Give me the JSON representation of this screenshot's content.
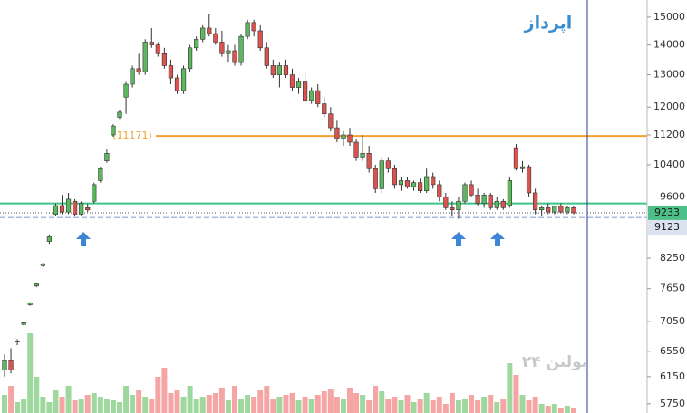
{
  "chart_data": {
    "type": "candlestick",
    "title": "اپرداز",
    "watermark": "بولتن ۲۴",
    "log_scale": true,
    "ylim": [
      5620,
      15650
    ],
    "yticks": [
      15000,
      14000,
      13000,
      12000,
      11200,
      10400,
      9600,
      8250,
      7650,
      7050,
      6550,
      6150,
      5750
    ],
    "up_color": "#5cb85c",
    "down_color": "#d9534f",
    "up_volume_color": "#9fd89f",
    "down_volume_color": "#f6a5a5",
    "open": [
      6250,
      6400,
      6700,
      7000,
      7350,
      7700,
      8100,
      8600,
      9200,
      9400,
      9250,
      9500,
      9200,
      9350,
      9500,
      10000,
      10500,
      11200,
      11700,
      12300,
      12700,
      13200,
      13100,
      14100,
      14000,
      13700,
      13300,
      12900,
      12500,
      13200,
      13900,
      14200,
      14600,
      14400,
      14100,
      13700,
      13800,
      13400,
      14300,
      14800,
      14500,
      13900,
      13300,
      13000,
      13300,
      13000,
      12600,
      12800,
      12200,
      12500,
      12100,
      11800,
      11400,
      11100,
      11200,
      11000,
      10600,
      10700,
      10300,
      9800,
      10500,
      10300,
      9900,
      10000,
      9850,
      9950,
      9750,
      10100,
      9900,
      9600,
      9350,
      9300,
      9500,
      9900,
      9650,
      9450,
      9650,
      9350,
      9500,
      9400,
      10850,
      10300,
      10350,
      9700,
      9300,
      9350,
      9250,
      9380,
      9250,
      9350
    ],
    "high": [
      6500,
      6600,
      6750,
      7050,
      7400,
      7750,
      8150,
      8750,
      9450,
      9650,
      9700,
      9550,
      9500,
      9450,
      9950,
      10350,
      10800,
      11500,
      11900,
      12800,
      13300,
      13700,
      14200,
      14600,
      14100,
      13900,
      13500,
      13000,
      13300,
      14000,
      14300,
      14700,
      15100,
      14600,
      14500,
      14000,
      14000,
      14400,
      14900,
      14900,
      14700,
      14100,
      13500,
      13400,
      13500,
      13200,
      12900,
      13100,
      12600,
      12700,
      12300,
      12000,
      11600,
      11300,
      11400,
      11100,
      11200,
      10900,
      10400,
      10600,
      10600,
      10400,
      10100,
      10100,
      10000,
      10050,
      10300,
      10200,
      10000,
      9700,
      9500,
      9600,
      9950,
      10000,
      9800,
      9700,
      9700,
      9600,
      9550,
      10100,
      10950,
      10500,
      10400,
      9800,
      9400,
      9450,
      9400,
      9450,
      9400,
      9380
    ],
    "low": [
      6150,
      6200,
      6650,
      6980,
      7330,
      7680,
      8080,
      8550,
      9150,
      9200,
      9200,
      9150,
      9150,
      9250,
      9450,
      9950,
      10450,
      11150,
      11650,
      11800,
      12600,
      13000,
      13000,
      13900,
      13600,
      13200,
      12700,
      12400,
      12400,
      13100,
      13800,
      14100,
      14300,
      14000,
      13600,
      13400,
      13300,
      13300,
      14200,
      14300,
      13800,
      13200,
      12900,
      12600,
      12900,
      12500,
      12400,
      12100,
      12100,
      12000,
      11700,
      11300,
      11000,
      10900,
      10900,
      10500,
      10500,
      10200,
      9700,
      9700,
      10200,
      9800,
      9750,
      9800,
      9750,
      9700,
      9700,
      9800,
      9500,
      9300,
      9150,
      9100,
      9450,
      9600,
      9400,
      9350,
      9300,
      9300,
      9300,
      9350,
      10250,
      10200,
      9600,
      9200,
      9150,
      9200,
      9200,
      9220,
      9200,
      9200
    ],
    "close": [
      6400,
      6250,
      6720,
      7030,
      7380,
      7740,
      8130,
      8700,
      9400,
      9250,
      9550,
      9200,
      9450,
      9300,
      9900,
      10300,
      10700,
      11450,
      11850,
      12700,
      13200,
      13100,
      14100,
      14000,
      13700,
      13300,
      12900,
      12500,
      13200,
      13900,
      14200,
      14600,
      14400,
      14100,
      13700,
      13800,
      13400,
      14300,
      14800,
      14500,
      13900,
      13300,
      13000,
      13300,
      13000,
      12600,
      12800,
      12200,
      12500,
      12100,
      11800,
      11400,
      11100,
      11200,
      11000,
      10600,
      10700,
      10300,
      9800,
      10500,
      10300,
      9900,
      10000,
      9850,
      9950,
      9750,
      10100,
      9900,
      9600,
      9350,
      9300,
      9500,
      9900,
      9650,
      9450,
      9650,
      9350,
      9500,
      9350,
      10000,
      10300,
      10350,
      9700,
      9300,
      9350,
      9250,
      9380,
      9250,
      9350,
      9233
    ],
    "volume": [
      20,
      30,
      12,
      15,
      88,
      40,
      18,
      12,
      25,
      18,
      30,
      14,
      16,
      20,
      22,
      18,
      15,
      14,
      12,
      30,
      20,
      25,
      18,
      16,
      40,
      50,
      22,
      25,
      18,
      30,
      16,
      18,
      20,
      22,
      28,
      14,
      30,
      16,
      20,
      18,
      25,
      30,
      16,
      18,
      20,
      22,
      14,
      18,
      16,
      20,
      24,
      26,
      18,
      16,
      28,
      22,
      20,
      14,
      30,
      24,
      16,
      18,
      14,
      20,
      12,
      16,
      22,
      14,
      18,
      10,
      22,
      14,
      16,
      20,
      14,
      18,
      20,
      12,
      16,
      55,
      42,
      20,
      14,
      18,
      10,
      8,
      10,
      6,
      8,
      6
    ],
    "volume_lim": [
      0,
      100
    ],
    "hlines": [
      {
        "value": 11171,
        "label": "(11171)",
        "color": "#f5a030"
      },
      {
        "value": 9450,
        "color": "#3cc48a"
      }
    ],
    "price_tags": [
      {
        "value": 9233,
        "color": "#4cbf87"
      },
      {
        "value": 9123,
        "color": "#dbe2f0"
      }
    ]
  }
}
